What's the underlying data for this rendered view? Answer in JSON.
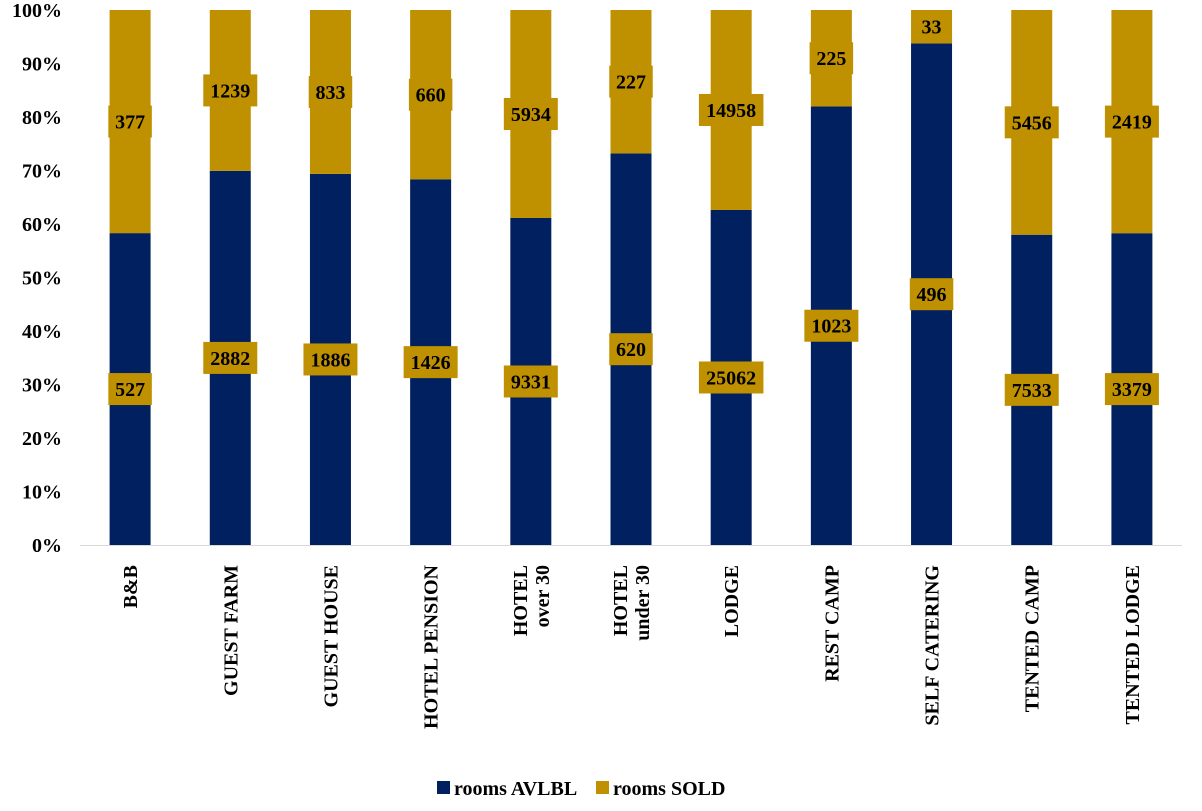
{
  "chart_data": {
    "type": "bar",
    "stacking": "percent",
    "categories": [
      [
        "B&B"
      ],
      [
        "GUEST FARM"
      ],
      [
        "GUEST HOUSE"
      ],
      [
        "HOTEL PENSION"
      ],
      [
        "HOTEL",
        "over 30"
      ],
      [
        "HOTEL",
        "under 30"
      ],
      [
        "LODGE"
      ],
      [
        "REST CAMP"
      ],
      [
        "SELF CATERING"
      ],
      [
        "TENTED CAMP"
      ],
      [
        "TENTED LODGE"
      ]
    ],
    "series": [
      {
        "name": "rooms AVLBL",
        "color": "#002060",
        "values": [
          527,
          2882,
          1886,
          1426,
          9331,
          620,
          25062,
          1023,
          496,
          7533,
          3379
        ]
      },
      {
        "name": "rooms SOLD",
        "color": "#BF9000",
        "values": [
          377,
          1239,
          833,
          660,
          5934,
          227,
          14958,
          225,
          33,
          5456,
          2419
        ]
      }
    ],
    "ylim": [
      0,
      100
    ],
    "yticks": [
      "0%",
      "10%",
      "20%",
      "30%",
      "40%",
      "50%",
      "60%",
      "70%",
      "80%",
      "90%",
      "100%"
    ],
    "data_label_bg": "#BF9000",
    "legend_position": "bottom",
    "grid": false
  }
}
